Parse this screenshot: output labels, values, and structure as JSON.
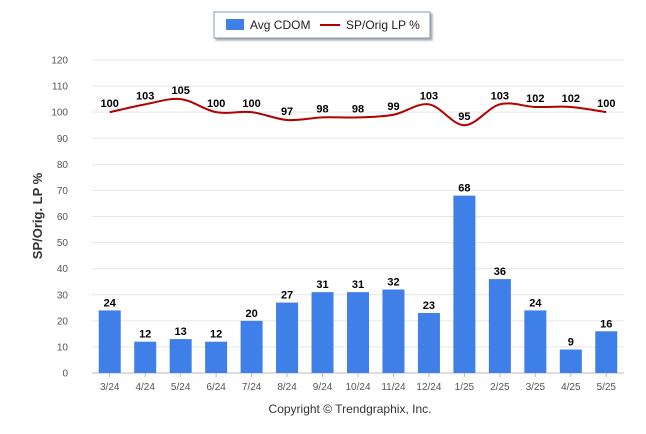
{
  "chart_data": {
    "type": "bar",
    "categories": [
      "3/24",
      "4/24",
      "5/24",
      "6/24",
      "7/24",
      "8/24",
      "9/24",
      "10/24",
      "11/24",
      "12/24",
      "1/25",
      "2/25",
      "3/25",
      "4/25",
      "5/25"
    ],
    "series": [
      {
        "name": "Avg CDOM",
        "type": "bar",
        "color": "#3f7fe8",
        "values": [
          24,
          12,
          13,
          12,
          20,
          27,
          31,
          31,
          32,
          23,
          68,
          36,
          24,
          9,
          16
        ]
      },
      {
        "name": "SP/Orig LP %",
        "type": "line",
        "color": "#b30000",
        "values": [
          100,
          103,
          105,
          100,
          100,
          97,
          98,
          98,
          99,
          103,
          95,
          103,
          102,
          102,
          100
        ]
      }
    ],
    "ylabel": "SP/Orig. LP %",
    "xlabel": "",
    "ylim": [
      0,
      120
    ],
    "yticks": [
      0,
      10,
      20,
      30,
      40,
      50,
      60,
      70,
      80,
      90,
      100,
      110,
      120
    ],
    "grid": true,
    "legend_position": "top-center"
  },
  "footer": {
    "copyright": "Copyright © Trendgraphix, Inc."
  }
}
